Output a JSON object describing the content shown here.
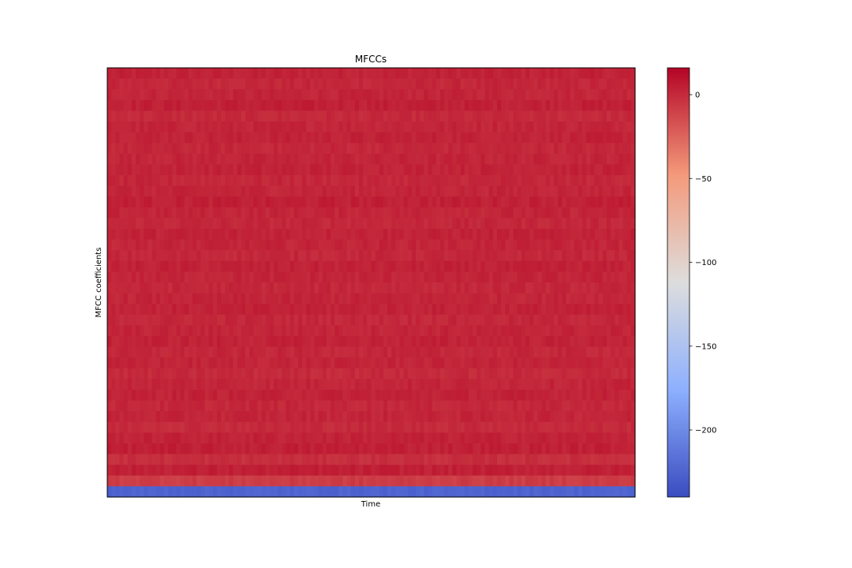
{
  "chart_data": {
    "type": "heatmap",
    "title": "MFCCs",
    "xlabel": "Time",
    "ylabel": "MFCC coefficients",
    "n_coefficients": 40,
    "n_frames": 130,
    "colormap": "coolwarm",
    "value_range": [
      -240,
      16
    ],
    "colorbar": {
      "ticks": [
        0,
        -50,
        -100,
        -150,
        -200
      ],
      "tick_labels": [
        "0",
        "−50",
        "−100",
        "−150",
        "−200"
      ]
    },
    "row_values": [
      3,
      1,
      2,
      4,
      0,
      2,
      3,
      1,
      2,
      3,
      1,
      2,
      4,
      2,
      1,
      3,
      2,
      1,
      3,
      2,
      1,
      2,
      3,
      1,
      2,
      3,
      1,
      2,
      0,
      2,
      3,
      1,
      2,
      0,
      3,
      4,
      -2,
      4,
      -8,
      -225
    ],
    "frame_variation": 3,
    "x_ticks": [],
    "y_ticks": []
  }
}
